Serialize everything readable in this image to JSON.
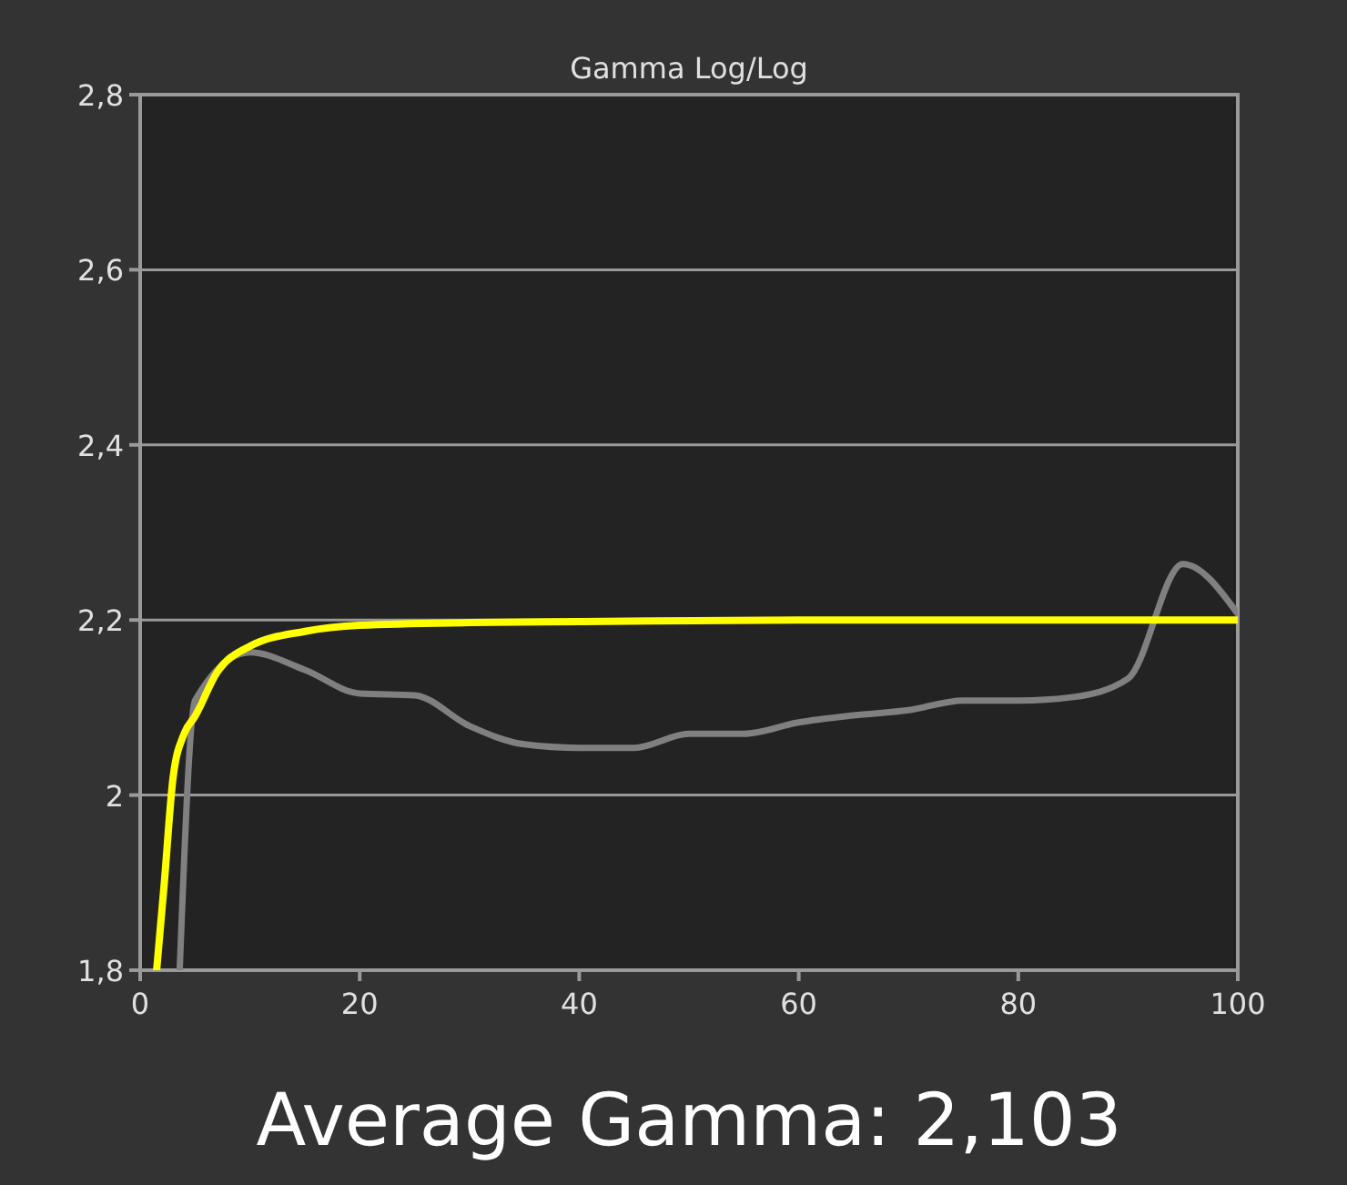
{
  "chart_data": {
    "type": "line",
    "title": "Gamma Log/Log",
    "annotations": [
      "Average Gamma: 2,103"
    ],
    "xlim": [
      0,
      100
    ],
    "xticks": [
      0,
      20,
      40,
      60,
      80,
      100
    ],
    "ylim": [
      1.8,
      2.8
    ],
    "yticks": [
      {
        "value": 1.8,
        "label": "1,8"
      },
      {
        "value": 2,
        "label": "2"
      },
      {
        "value": 2.2,
        "label": "2,2"
      },
      {
        "value": 2.4,
        "label": "2,4"
      },
      {
        "value": 2.6,
        "label": "2,6"
      },
      {
        "value": 2.8,
        "label": "2,8"
      }
    ],
    "grid": "y",
    "marker": "none",
    "line_style": "solid",
    "series": [
      {
        "color": "#808080",
        "x": [
          3.6,
          5,
          10,
          15,
          20,
          25,
          30,
          35,
          40,
          45,
          50,
          55,
          60,
          65,
          70,
          75,
          80,
          85,
          90,
          95,
          100
        ],
        "values": [
          1.8,
          2.108,
          2.163,
          2.143,
          2.116,
          2.114,
          2.079,
          2.058,
          2.054,
          2.054,
          2.07,
          2.07,
          2.083,
          2.091,
          2.097,
          2.108,
          2.108,
          2.112,
          2.133,
          2.264,
          2.207
        ]
      },
      {
        "color": "#ffff00",
        "x": [
          1.5,
          2.2,
          3,
          4,
          5,
          7,
          10,
          15,
          20,
          30,
          40,
          60,
          100
        ],
        "values": [
          1.8,
          1.9,
          2.02,
          2.07,
          2.09,
          2.14,
          2.17,
          2.187,
          2.194,
          2.197,
          2.198,
          2.2,
          2.2
        ]
      }
    ]
  }
}
